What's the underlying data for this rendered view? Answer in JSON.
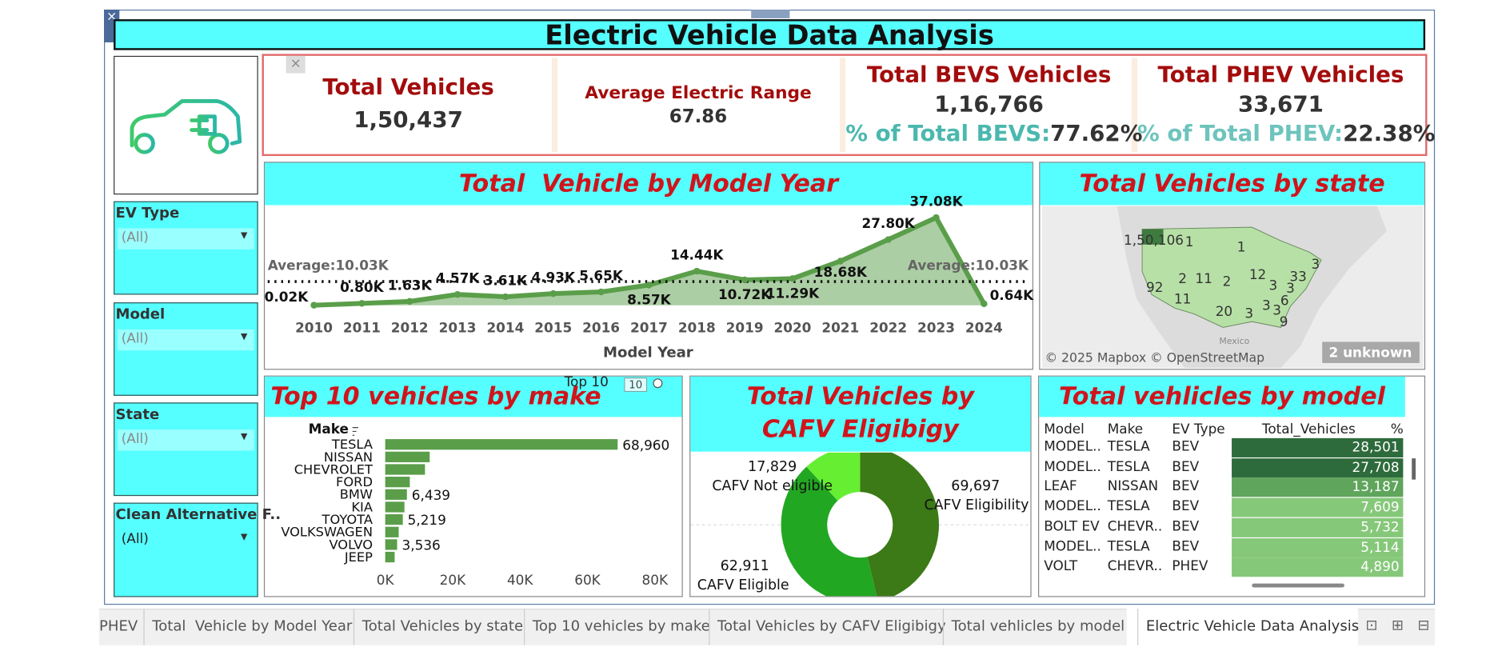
{
  "title": "Electric Vehicle Data Analysis",
  "kpis": [
    {
      "label": "Total Vehicles",
      "value": "1,50,437"
    },
    {
      "label": "Average Electric Range",
      "value": "67.86"
    },
    {
      "label": "Total BEVS Vehicles",
      "value": "1,16,766",
      "share_label": "% of Total BEVS:",
      "share": "77.62%"
    },
    {
      "label": "Total PHEV Vehicles",
      "value": "33,671",
      "share_label": "% of Total PHEV:",
      "share": "22.38%"
    }
  ],
  "filters": [
    {
      "label": "EV Type",
      "value": "(All)"
    },
    {
      "label": "Model",
      "value": "(All)"
    },
    {
      "label": "State",
      "value": "(All)"
    },
    {
      "label": "Clean Alternative F..",
      "value": "(All)"
    }
  ],
  "chart_data": [
    {
      "type": "line",
      "title": "Total  Vehicle by Model Year",
      "x_label": "Model Year",
      "categories": [
        "2010",
        "2011",
        "2012",
        "2013",
        "2014",
        "2015",
        "2016",
        "2017",
        "2018",
        "2019",
        "2020",
        "2021",
        "2022",
        "2023",
        "2024"
      ],
      "values": [
        0.02,
        0.8,
        1.63,
        4.57,
        3.61,
        4.93,
        5.65,
        8.57,
        14.44,
        10.72,
        11.29,
        18.68,
        27.8,
        37.08,
        0.64
      ],
      "value_labels": [
        "0.02K",
        "0.80K",
        "1.63K",
        "4.57K",
        "3.61K",
        "4.93K",
        "5.65K",
        "8.57K",
        "14.44K",
        "10.72K",
        "11.29K",
        "18.68K",
        "27.80K",
        "37.08K",
        "0.64K"
      ],
      "color": "#5a9e4a",
      "reference_line": {
        "value": 10.03,
        "label": "Average:10.03K"
      }
    },
    {
      "type": "bar",
      "orientation": "horizontal",
      "title": "Top 10 vehicles by make",
      "y_label": "Make",
      "parameter": {
        "label": "Top 10",
        "value": 10
      },
      "categories": [
        "TESLA",
        "NISSAN",
        "CHEVROLET",
        "FORD",
        "BMW",
        "KIA",
        "TOYOTA",
        "VOLKSWAGEN",
        "VOLVO",
        "JEEP"
      ],
      "values": [
        68960,
        13200,
        11800,
        7300,
        6439,
        5700,
        5219,
        4000,
        3536,
        2800
      ],
      "value_labels": [
        "68,960",
        null,
        null,
        null,
        "6,439",
        null,
        "5,219",
        null,
        "3,536",
        null
      ],
      "color": "#5a9e4a",
      "xlim": [
        0,
        80000
      ],
      "xticks": [
        {
          "value": 0,
          "label": "0K"
        },
        {
          "value": 20000,
          "label": "20K"
        },
        {
          "value": 40000,
          "label": "40K"
        },
        {
          "value": 60000,
          "label": "60K"
        },
        {
          "value": 80000,
          "label": "80K"
        }
      ]
    },
    {
      "type": "pie",
      "donut": true,
      "title": "Total Vehicles by CAFV Eligibigy",
      "categories": [
        "CAFV Eligibility",
        "CAFV  Eligible",
        "CAFV Not eligible"
      ],
      "values": [
        69697,
        62911,
        17829
      ],
      "value_labels": [
        "69,697",
        "62,911",
        "17,829"
      ],
      "colors": [
        "#3b7a16",
        "#22a722",
        "#66ee33"
      ]
    }
  ],
  "state_map": {
    "title": "Total Vehicles by state",
    "labels": [
      "1,50,106",
      "1",
      "1",
      "92",
      "2",
      "11",
      "2",
      "12",
      "33",
      "3",
      "3",
      "11",
      "6",
      "3",
      "20",
      "3",
      "3",
      "9",
      "3"
    ],
    "place": "Mexico",
    "attribution": "© 2025 Mapbox © OpenStreetMap",
    "unknown": "2 unknown"
  },
  "table": {
    "title": "Total vehlicles by model",
    "columns": [
      "Model",
      "Make",
      "EV Type",
      "Total_Vehicles",
      "%"
    ],
    "rows": [
      [
        "MODEL..",
        "TESLA",
        "BEV",
        "28,501"
      ],
      [
        "MODEL..",
        "TESLA",
        "BEV",
        "27,708"
      ],
      [
        "LEAF",
        "NISSAN",
        "BEV",
        "13,187"
      ],
      [
        "MODEL..",
        "TESLA",
        "BEV",
        "7,609"
      ],
      [
        "BOLT EV",
        "CHEVR..",
        "BEV",
        "5,732"
      ],
      [
        "MODEL..",
        "TESLA",
        "BEV",
        "5,114"
      ],
      [
        "VOLT",
        "CHEVR..",
        "PHEV",
        "4,890"
      ]
    ],
    "cell_colors": [
      "#2e6b3c",
      "#2e6b3c",
      "#5fa55c",
      "#86c87a",
      "#86c87a",
      "#86c87a",
      "#86c87a"
    ]
  },
  "tabs": [
    "PHEV",
    "Total  Vehicle by Model Year",
    "Total Vehicles by state",
    "Top 10 vehicles by make",
    "Total Vehicles by CAFV Eligibigy",
    "Total vehlicles by model",
    "Electric Vehicle Data Analysis"
  ]
}
